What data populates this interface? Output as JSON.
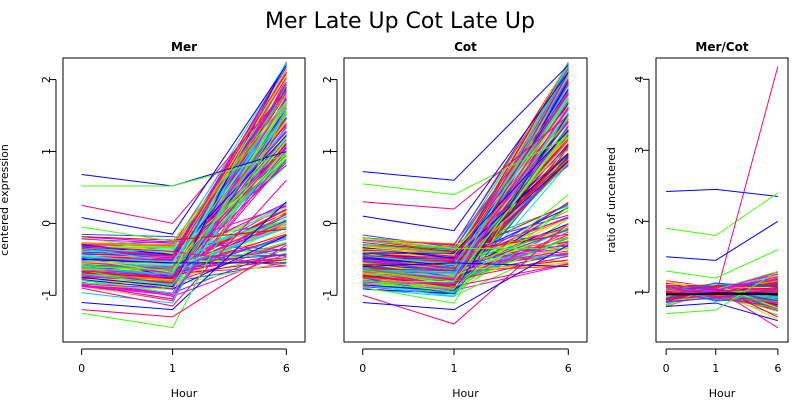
{
  "figure_title": "Mer Late Up Cot Late Up",
  "chart_data": [
    {
      "type": "line",
      "title": "Mer",
      "xlabel": "Hour",
      "ylabel": "centered expression",
      "x": [
        0,
        1,
        6
      ],
      "xticks": [
        "0",
        "1",
        "6"
      ],
      "yticks": [
        -1,
        0,
        1,
        2
      ],
      "ylim": [
        -1.65,
        2.3
      ],
      "grid": false,
      "series_count_approx": 220,
      "representative_series": [
        {
          "values": [
            0.68,
            0.52,
            1.0
          ]
        },
        {
          "values": [
            0.52,
            0.52,
            0.95
          ]
        },
        {
          "values": [
            0.25,
            0.0,
            1.85
          ]
        },
        {
          "values": [
            0.08,
            -0.15,
            2.2
          ]
        },
        {
          "values": [
            -0.05,
            -0.25,
            1.7
          ]
        },
        {
          "values": [
            -0.35,
            -0.45,
            2.1
          ]
        },
        {
          "values": [
            -0.5,
            -0.55,
            -0.55
          ]
        },
        {
          "values": [
            -0.6,
            -0.65,
            1.2
          ]
        },
        {
          "values": [
            -0.9,
            -1.15,
            0.6
          ]
        },
        {
          "values": [
            -1.1,
            -1.2,
            0.3
          ]
        },
        {
          "values": [
            -1.25,
            -1.45,
            1.55
          ]
        },
        {
          "values": [
            -1.2,
            -1.3,
            -0.3
          ]
        }
      ]
    },
    {
      "type": "line",
      "title": "Cot",
      "xlabel": "Hour",
      "ylabel": "",
      "x": [
        0,
        1,
        6
      ],
      "xticks": [
        "0",
        "1",
        "6"
      ],
      "yticks": [
        -1,
        0,
        1,
        2
      ],
      "ylim": [
        -1.65,
        2.3
      ],
      "grid": false,
      "series_count_approx": 220,
      "representative_series": [
        {
          "values": [
            0.72,
            0.6,
            2.2
          ]
        },
        {
          "values": [
            0.55,
            0.4,
            1.2
          ]
        },
        {
          "values": [
            0.3,
            0.2,
            1.5
          ]
        },
        {
          "values": [
            0.1,
            -0.1,
            2.1
          ]
        },
        {
          "values": [
            -0.2,
            -0.35,
            -0.35
          ]
        },
        {
          "values": [
            -0.45,
            -0.5,
            1.8
          ]
        },
        {
          "values": [
            -0.6,
            -0.55,
            -0.6
          ]
        },
        {
          "values": [
            -0.8,
            -0.9,
            0.4
          ]
        },
        {
          "values": [
            -1.0,
            -1.4,
            0.0
          ]
        },
        {
          "values": [
            -1.1,
            -1.2,
            -0.3
          ]
        }
      ]
    },
    {
      "type": "line",
      "title": "Mer/Cot",
      "xlabel": "Hour",
      "ylabel": "ratio of uncentered",
      "x": [
        0,
        1,
        6
      ],
      "xticks": [
        "0",
        "1",
        "6"
      ],
      "yticks": [
        1,
        2,
        3,
        4
      ],
      "ylim": [
        0.3,
        4.3
      ],
      "grid": false,
      "reference_line": {
        "color": "#000000",
        "values": [
          0.97,
          0.98,
          0.98
        ]
      },
      "series_count_approx": 220,
      "representative_series": [
        {
          "values": [
            2.42,
            2.45,
            2.35
          ]
        },
        {
          "values": [
            1.9,
            1.8,
            2.4
          ]
        },
        {
          "values": [
            1.0,
            0.95,
            4.18
          ]
        },
        {
          "values": [
            1.5,
            1.45,
            2.0
          ]
        },
        {
          "values": [
            1.3,
            1.2,
            1.6
          ]
        },
        {
          "values": [
            1.1,
            1.05,
            0.5
          ]
        },
        {
          "values": [
            0.8,
            0.85,
            0.6
          ]
        },
        {
          "values": [
            0.7,
            0.75,
            1.3
          ]
        }
      ]
    }
  ]
}
